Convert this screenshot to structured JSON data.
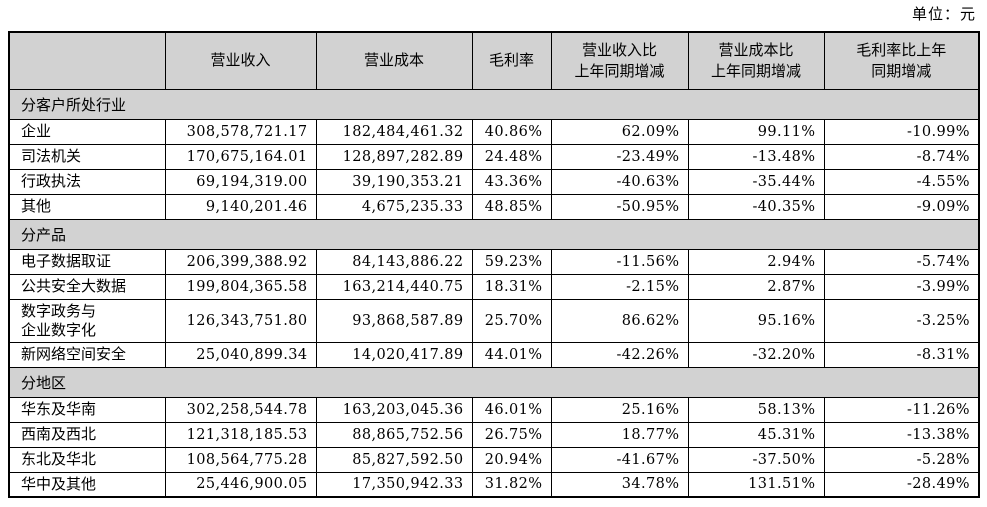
{
  "unit_label": "单位：元",
  "table": {
    "columns": [
      "",
      "营业收入",
      "营业成本",
      "毛利率",
      "营业收入比\n上年同期增减",
      "营业成本比\n上年同期增减",
      "毛利率比上年\n同期增减"
    ],
    "sections": [
      {
        "title": "分客户所处行业",
        "rows": [
          {
            "label": "企业",
            "revenue": "308,578,721.17",
            "cost": "182,484,461.32",
            "margin": "40.86%",
            "revenue_yoy": "62.09%",
            "cost_yoy": "99.11%",
            "margin_yoy": "-10.99%"
          },
          {
            "label": "司法机关",
            "revenue": "170,675,164.01",
            "cost": "128,897,282.89",
            "margin": "24.48%",
            "revenue_yoy": "-23.49%",
            "cost_yoy": "-13.48%",
            "margin_yoy": "-8.74%"
          },
          {
            "label": "行政执法",
            "revenue": "69,194,319.00",
            "cost": "39,190,353.21",
            "margin": "43.36%",
            "revenue_yoy": "-40.63%",
            "cost_yoy": "-35.44%",
            "margin_yoy": "-4.55%"
          },
          {
            "label": "其他",
            "revenue": "9,140,201.46",
            "cost": "4,675,235.33",
            "margin": "48.85%",
            "revenue_yoy": "-50.95%",
            "cost_yoy": "-40.35%",
            "margin_yoy": "-9.09%"
          }
        ]
      },
      {
        "title": "分产品",
        "rows": [
          {
            "label": "电子数据取证",
            "revenue": "206,399,388.92",
            "cost": "84,143,886.22",
            "margin": "59.23%",
            "revenue_yoy": "-11.56%",
            "cost_yoy": "2.94%",
            "margin_yoy": "-5.74%"
          },
          {
            "label": "公共安全大数据",
            "revenue": "199,804,365.58",
            "cost": "163,214,440.75",
            "margin": "18.31%",
            "revenue_yoy": "-2.15%",
            "cost_yoy": "2.87%",
            "margin_yoy": "-3.99%"
          },
          {
            "label": "数字政务与\n企业数字化",
            "revenue": "126,343,751.80",
            "cost": "93,868,587.89",
            "margin": "25.70%",
            "revenue_yoy": "86.62%",
            "cost_yoy": "95.16%",
            "margin_yoy": "-3.25%"
          },
          {
            "label": "新网络空间安全",
            "revenue": "25,040,899.34",
            "cost": "14,020,417.89",
            "margin": "44.01%",
            "revenue_yoy": "-42.26%",
            "cost_yoy": "-32.20%",
            "margin_yoy": "-8.31%"
          }
        ]
      },
      {
        "title": "分地区",
        "rows": [
          {
            "label": "华东及华南",
            "revenue": "302,258,544.78",
            "cost": "163,203,045.36",
            "margin": "46.01%",
            "revenue_yoy": "25.16%",
            "cost_yoy": "58.13%",
            "margin_yoy": "-11.26%"
          },
          {
            "label": "西南及西北",
            "revenue": "121,318,185.53",
            "cost": "88,865,752.56",
            "margin": "26.75%",
            "revenue_yoy": "18.77%",
            "cost_yoy": "45.31%",
            "margin_yoy": "-13.38%"
          },
          {
            "label": "东北及华北",
            "revenue": "108,564,775.28",
            "cost": "85,827,592.50",
            "margin": "20.94%",
            "revenue_yoy": "-41.67%",
            "cost_yoy": "-37.50%",
            "margin_yoy": "-5.28%"
          },
          {
            "label": "华中及其他",
            "revenue": "25,446,900.05",
            "cost": "17,350,942.33",
            "margin": "31.82%",
            "revenue_yoy": "34.78%",
            "cost_yoy": "131.51%",
            "margin_yoy": "-28.49%"
          }
        ]
      }
    ]
  }
}
